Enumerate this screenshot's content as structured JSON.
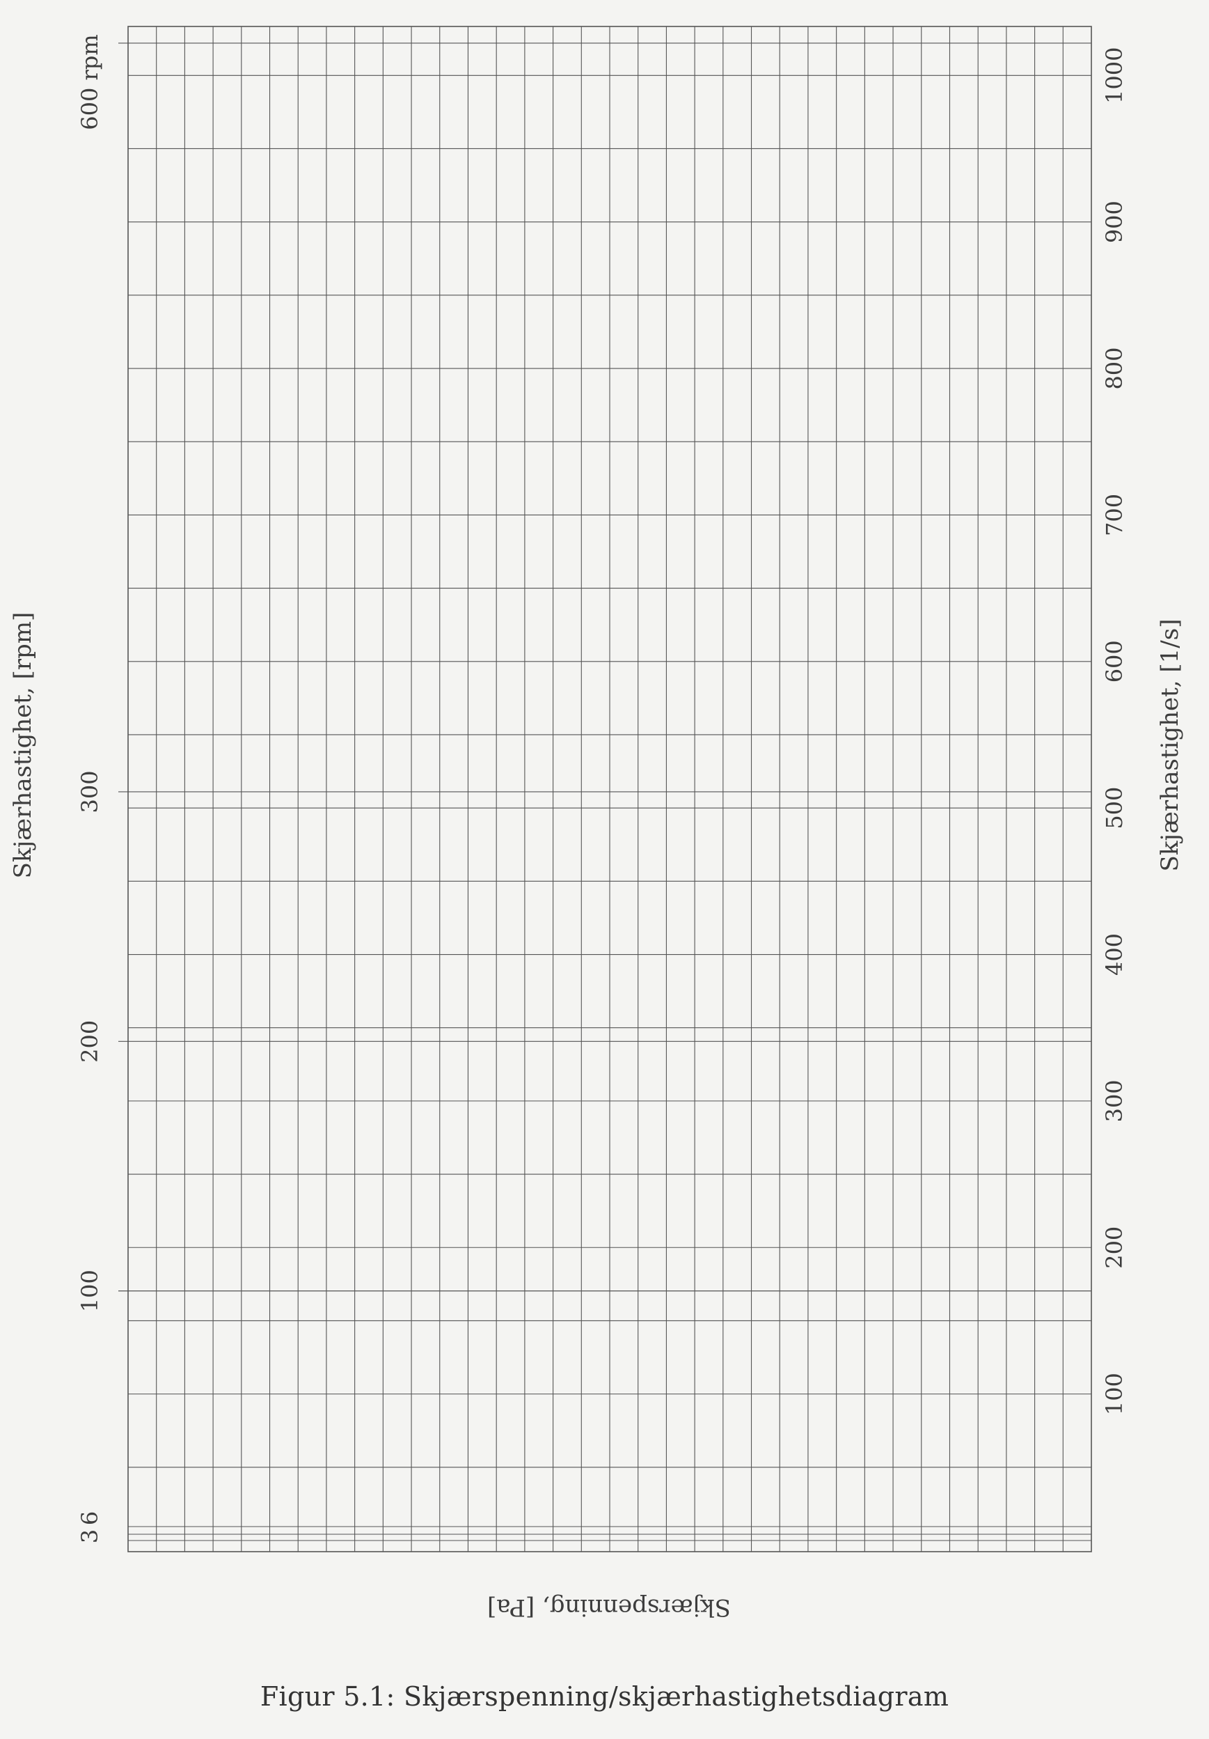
{
  "caption": "Figur 5.1: Skjærspenning/skjærhastighetsdiagram",
  "chart_data": {
    "type": "line",
    "orientation": "rotated-90-ccw",
    "grid": true,
    "series": [],
    "axes": {
      "shear_rate_rpm": {
        "label": "Skjærhastighet, [rpm]",
        "position": "left",
        "ticks": [
          "3",
          "6",
          "100",
          "200",
          "300",
          "600 rpm"
        ],
        "tick_values": [
          3,
          6,
          100,
          200,
          300,
          600
        ],
        "unit_note": "rpm"
      },
      "shear_rate_s": {
        "label": "Skjærhastighet, [1/s]",
        "position": "right",
        "ticks": [
          "100",
          "200",
          "300",
          "400",
          "500",
          "600",
          "700",
          "800",
          "900",
          "1000"
        ],
        "tick_values": [
          100,
          200,
          300,
          400,
          500,
          600,
          700,
          800,
          900,
          1000
        ],
        "range": [
          0,
          1022
        ]
      },
      "shear_stress": {
        "label": "Skjærspenning, [Pa]",
        "position": "bottom-upside-down",
        "ticks": [],
        "vertical_divisions": 34
      }
    },
    "colors": {
      "grid": "#555555",
      "text": "#3a3a3a",
      "background": "#f4f4f2"
    }
  }
}
